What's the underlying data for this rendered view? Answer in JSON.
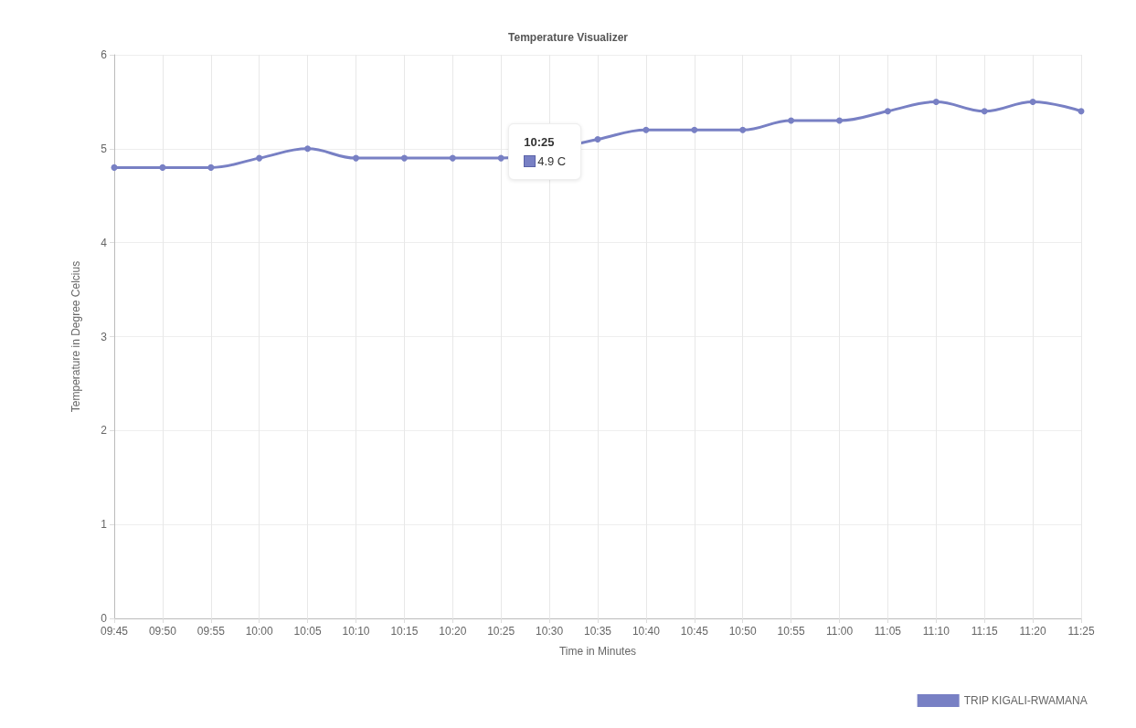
{
  "chart_data": {
    "type": "line",
    "title": "Temperature Visualizer",
    "xlabel": "Time in Minutes",
    "ylabel": "Temperature in Degree Celcius",
    "categories": [
      "09:45",
      "09:50",
      "09:55",
      "10:00",
      "10:05",
      "10:10",
      "10:15",
      "10:20",
      "10:25",
      "10:30",
      "10:35",
      "10:40",
      "10:45",
      "10:50",
      "10:55",
      "11:00",
      "11:05",
      "11:10",
      "11:15",
      "11:20",
      "11:25"
    ],
    "series": [
      {
        "name": "TRIP KIGALI-RWAMANA",
        "color": "#7880c4",
        "values": [
          4.8,
          4.8,
          4.8,
          4.9,
          5.0,
          4.9,
          4.9,
          4.9,
          4.9,
          null,
          5.1,
          5.2,
          5.2,
          5.2,
          5.3,
          5.3,
          5.4,
          5.5,
          5.4,
          5.5,
          5.4
        ]
      }
    ],
    "ylim": [
      0,
      6
    ],
    "yticks": [
      0,
      1,
      2,
      3,
      4,
      5,
      6
    ],
    "grid": true,
    "legend": "bottom right",
    "marker": "circle",
    "line_style": "solid",
    "annotations": [
      {
        "text": "10:25",
        "x": "10:25",
        "y": 4.9
      },
      "4.9 C"
    ]
  }
}
